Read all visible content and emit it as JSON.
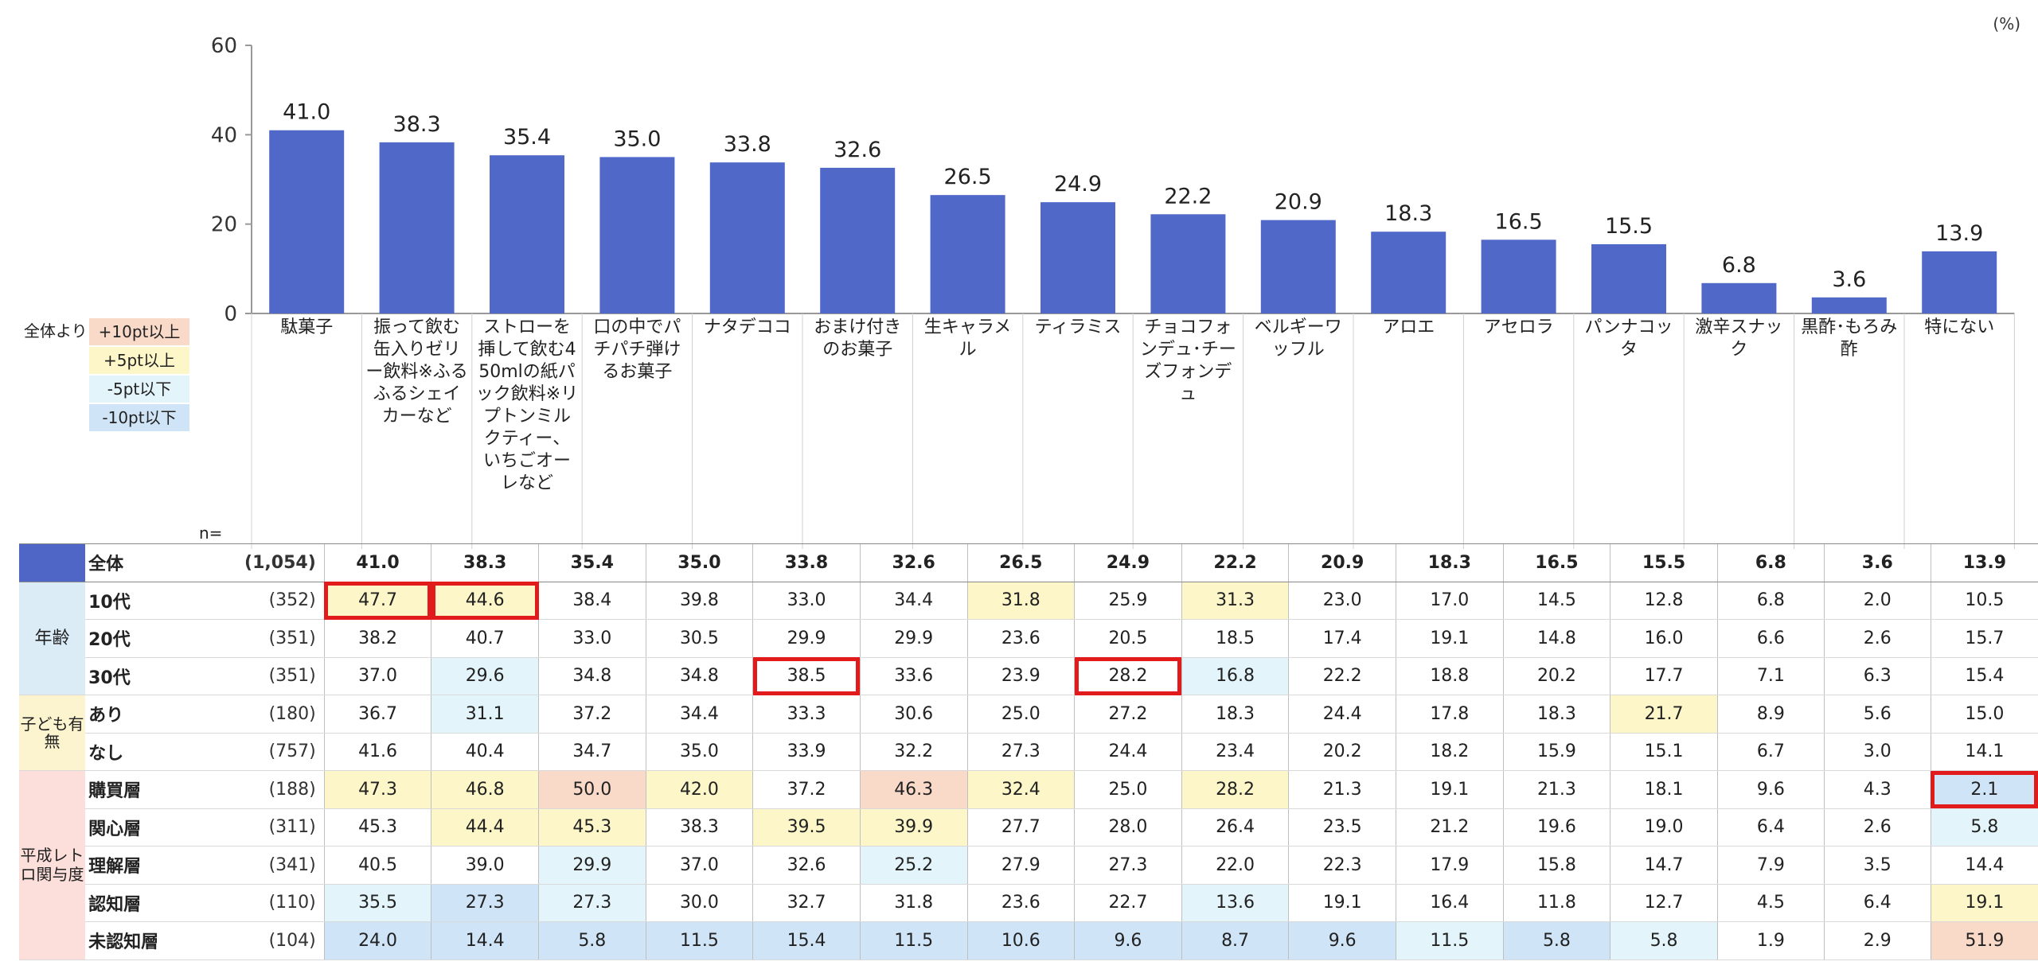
{
  "unit_label": "(%)",
  "legend": {
    "title": "全体より",
    "items": [
      {
        "label": "+10pt以上",
        "color": "#f9d9c8"
      },
      {
        "label": "+5pt以上",
        "color": "#fcf6c8"
      },
      {
        "label": "-5pt以下",
        "color": "#e3f5fb"
      },
      {
        "label": "-10pt以下",
        "color": "#cfe4f7"
      }
    ]
  },
  "n_label": "n=",
  "bar_color": "#5068c8",
  "highlight_color": "#e11b1b",
  "chart_data": {
    "type": "bar",
    "categories": [
      "駄菓子",
      "振って飲む缶入りゼリー飲料※ふるふるシェイカーなど",
      "ストローを挿して飲む450mlの紙パック飲料※リプトンミルクティー、いちごオーレなど",
      "口の中でパチパチ弾けるお菓子",
      "ナタデココ",
      "おまけ付きのお菓子",
      "生キャラメル",
      "ティラミス",
      "チョコフォンデュ･チーズフォンデュ",
      "ベルギーワッフル",
      "アロエ",
      "アセロラ",
      "パンナコッタ",
      "激辛スナック",
      "黒酢･もろみ酢",
      "特にない"
    ],
    "values": [
      41.0,
      38.3,
      35.4,
      35.0,
      33.8,
      32.6,
      26.5,
      24.9,
      22.2,
      20.9,
      18.3,
      16.5,
      15.5,
      6.8,
      3.6,
      13.9
    ],
    "value_labels": [
      "41.0",
      "38.3",
      "35.4",
      "35.0",
      "33.8",
      "32.6",
      "26.5",
      "24.9",
      "22.2",
      "20.9",
      "18.3",
      "16.5",
      "15.5",
      "6.8",
      "3.6",
      "13.9"
    ],
    "ylim": [
      0,
      60
    ],
    "yticks": [
      "0",
      "20",
      "40",
      "60"
    ],
    "grid": false
  },
  "table": {
    "groups": [
      {
        "label": "",
        "rows": [
          {
            "label": "全体",
            "n": "(1,054)",
            "values": [
              "41.0",
              "38.3",
              "35.4",
              "35.0",
              "33.8",
              "32.6",
              "26.5",
              "24.9",
              "22.2",
              "20.9",
              "18.3",
              "16.5",
              "15.5",
              "6.8",
              "3.6",
              "13.9"
            ],
            "shade": [
              "",
              "",
              "",
              "",
              "",
              "",
              "",
              "",
              "",
              "",
              "",
              "",
              "",
              "",
              "",
              ""
            ],
            "hl": []
          }
        ]
      },
      {
        "label": "年齢",
        "rows": [
          {
            "label": "10代",
            "n": "(352)",
            "values": [
              "47.7",
              "44.6",
              "38.4",
              "39.8",
              "33.0",
              "34.4",
              "31.8",
              "25.9",
              "31.3",
              "23.0",
              "17.0",
              "14.5",
              "12.8",
              "6.8",
              "2.0",
              "10.5"
            ],
            "shade": [
              "p5",
              "p5",
              "",
              "",
              "",
              "",
              "p5",
              "",
              "p5",
              "",
              "",
              "",
              "",
              "",
              "",
              ""
            ],
            "hl": [
              0,
              1
            ]
          },
          {
            "label": "20代",
            "n": "(351)",
            "values": [
              "38.2",
              "40.7",
              "33.0",
              "30.5",
              "29.9",
              "29.9",
              "23.6",
              "20.5",
              "18.5",
              "17.4",
              "19.1",
              "14.8",
              "16.0",
              "6.6",
              "2.6",
              "15.7"
            ],
            "shade": [
              "",
              "",
              "",
              "",
              "",
              "",
              "",
              "",
              "",
              "",
              "",
              "",
              "",
              "",
              "",
              ""
            ],
            "hl": []
          },
          {
            "label": "30代",
            "n": "(351)",
            "values": [
              "37.0",
              "29.6",
              "34.8",
              "34.8",
              "38.5",
              "33.6",
              "23.9",
              "28.2",
              "16.8",
              "22.2",
              "18.8",
              "20.2",
              "17.7",
              "7.1",
              "6.3",
              "15.4"
            ],
            "shade": [
              "",
              "m5",
              "",
              "",
              "",
              "",
              "",
              "",
              "m5",
              "",
              "",
              "",
              "",
              "",
              "",
              ""
            ],
            "hl": [
              4,
              7
            ]
          }
        ]
      },
      {
        "label": "子ども有無",
        "rows": [
          {
            "label": "あり",
            "n": "(180)",
            "values": [
              "36.7",
              "31.1",
              "37.2",
              "34.4",
              "33.3",
              "30.6",
              "25.0",
              "27.2",
              "18.3",
              "24.4",
              "17.8",
              "18.3",
              "21.7",
              "8.9",
              "5.6",
              "15.0"
            ],
            "shade": [
              "",
              "m5",
              "",
              "",
              "",
              "",
              "",
              "",
              "",
              "",
              "",
              "",
              "p5",
              "",
              "",
              ""
            ],
            "hl": []
          },
          {
            "label": "なし",
            "n": "(757)",
            "values": [
              "41.6",
              "40.4",
              "34.7",
              "35.0",
              "33.9",
              "32.2",
              "27.3",
              "24.4",
              "23.4",
              "20.2",
              "18.2",
              "15.9",
              "15.1",
              "6.7",
              "3.0",
              "14.1"
            ],
            "shade": [
              "",
              "",
              "",
              "",
              "",
              "",
              "",
              "",
              "",
              "",
              "",
              "",
              "",
              "",
              "",
              ""
            ],
            "hl": []
          }
        ]
      },
      {
        "label": "平成レトロ関与度",
        "rows": [
          {
            "label": "購買層",
            "n": "(188)",
            "values": [
              "47.3",
              "46.8",
              "50.0",
              "42.0",
              "37.2",
              "46.3",
              "32.4",
              "25.0",
              "28.2",
              "21.3",
              "19.1",
              "21.3",
              "18.1",
              "9.6",
              "4.3",
              "2.1"
            ],
            "shade": [
              "p5",
              "p5",
              "p10",
              "p5",
              "",
              "p10",
              "p5",
              "",
              "p5",
              "",
              "",
              "",
              "",
              "",
              "",
              "m10"
            ],
            "hl": [
              15
            ]
          },
          {
            "label": "関心層",
            "n": "(311)",
            "values": [
              "45.3",
              "44.4",
              "45.3",
              "38.3",
              "39.5",
              "39.9",
              "27.7",
              "28.0",
              "26.4",
              "23.5",
              "21.2",
              "19.6",
              "19.0",
              "6.4",
              "2.6",
              "5.8"
            ],
            "shade": [
              "",
              "p5",
              "p5",
              "",
              "p5",
              "p5",
              "",
              "",
              "",
              "",
              "",
              "",
              "",
              "",
              "",
              "m5"
            ],
            "hl": []
          },
          {
            "label": "理解層",
            "n": "(341)",
            "values": [
              "40.5",
              "39.0",
              "29.9",
              "37.0",
              "32.6",
              "25.2",
              "27.9",
              "27.3",
              "22.0",
              "22.3",
              "17.9",
              "15.8",
              "14.7",
              "7.9",
              "3.5",
              "14.4"
            ],
            "shade": [
              "",
              "",
              "m5",
              "",
              "",
              "m5",
              "",
              "",
              "",
              "",
              "",
              "",
              "",
              "",
              "",
              ""
            ],
            "hl": []
          },
          {
            "label": "認知層",
            "n": "(110)",
            "values": [
              "35.5",
              "27.3",
              "27.3",
              "30.0",
              "32.7",
              "31.8",
              "23.6",
              "22.7",
              "13.6",
              "19.1",
              "16.4",
              "11.8",
              "12.7",
              "4.5",
              "6.4",
              "19.1"
            ],
            "shade": [
              "m5",
              "m10",
              "m5",
              "",
              "",
              "",
              "",
              "",
              "m5",
              "",
              "",
              "",
              "",
              "",
              "",
              "p5"
            ],
            "hl": []
          },
          {
            "label": "未認知層",
            "n": "(104)",
            "values": [
              "24.0",
              "14.4",
              "5.8",
              "11.5",
              "15.4",
              "11.5",
              "10.6",
              "9.6",
              "8.7",
              "9.6",
              "11.5",
              "5.8",
              "5.8",
              "1.9",
              "2.9",
              "51.9"
            ],
            "shade": [
              "m10",
              "m10",
              "m10",
              "m10",
              "m10",
              "m10",
              "m10",
              "m10",
              "m10",
              "m10",
              "m5",
              "m10",
              "m5",
              "",
              "",
              "p10"
            ],
            "hl": []
          }
        ]
      }
    ]
  }
}
